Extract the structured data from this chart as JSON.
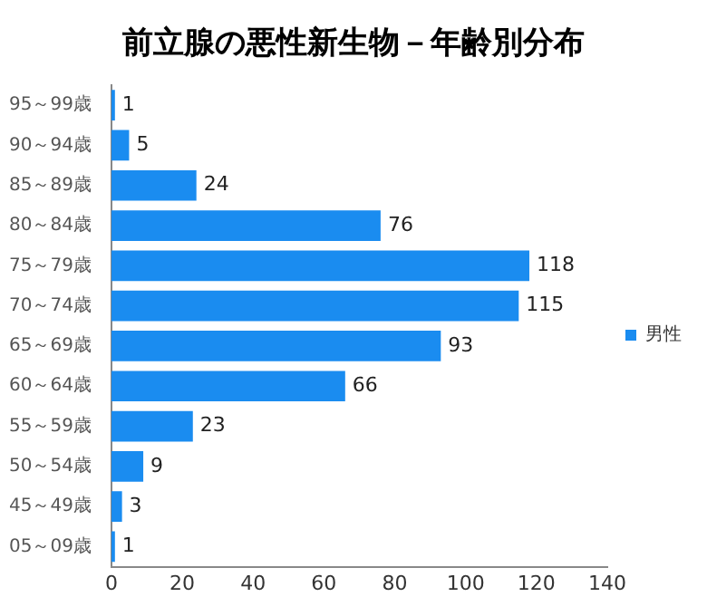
{
  "chart_data": {
    "type": "bar",
    "orientation": "horizontal",
    "title": "前立腺の悪性新生物－年齢別分布",
    "categories": [
      "95～99歳",
      "90～94歳",
      "85～89歳",
      "80～84歳",
      "75～79歳",
      "70～74歳",
      "65～69歳",
      "60～64歳",
      "55～59歳",
      "50～54歳",
      "45～49歳",
      "05～09歳"
    ],
    "series": [
      {
        "name": "男性",
        "color": "#1a8cf0",
        "values": [
          1,
          5,
          24,
          76,
          118,
          115,
          93,
          66,
          23,
          9,
          3,
          1
        ]
      }
    ],
    "xlim": [
      0,
      140
    ],
    "xticks": [
      0,
      20,
      40,
      60,
      80,
      100,
      120,
      140
    ],
    "data_labels": true,
    "grid": false,
    "legend": "right"
  }
}
